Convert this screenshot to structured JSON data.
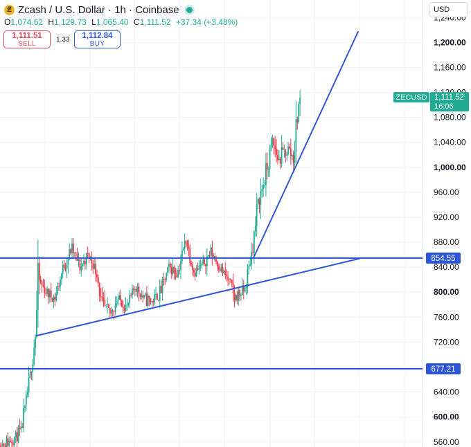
{
  "header": {
    "logo_glyph": "Ƶ",
    "title": "Zcash / U.S. Dollar · 1h · Coinbase",
    "live_color": "#22ab94"
  },
  "ohlc": {
    "o_label": "O",
    "o_value": "1,074.62",
    "h_label": "H",
    "h_value": "1,129.73",
    "l_label": "L",
    "l_value": "1,065.40",
    "c_label": "C",
    "c_value": "1,111.52",
    "change": "+37.34 (+3.48%)"
  },
  "trade": {
    "sell_price": "1,111.51",
    "sell_label": "SELL",
    "spread": "1.33",
    "buy_price": "1,112.84",
    "buy_label": "BUY"
  },
  "currency_select": "USD",
  "colors": {
    "up": "#22ab94",
    "down": "#f23645",
    "trendline": "#2e57d8",
    "price_tag": "#22ab94"
  },
  "chart_data": {
    "type": "candlestick",
    "y_axis_ticks": [
      {
        "value": 1240,
        "label": "1,240.00",
        "bold": false
      },
      {
        "value": 1200,
        "label": "1,200.00",
        "bold": true
      },
      {
        "value": 1160,
        "label": "1,160.00",
        "bold": false
      },
      {
        "value": 1120,
        "label": "1,120.00",
        "bold": false
      },
      {
        "value": 1080,
        "label": "1,080.00",
        "bold": false
      },
      {
        "value": 1040,
        "label": "1,040.00",
        "bold": false
      },
      {
        "value": 1000,
        "label": "1,000.00",
        "bold": true
      },
      {
        "value": 960,
        "label": "960.00",
        "bold": false
      },
      {
        "value": 920,
        "label": "920.00",
        "bold": false
      },
      {
        "value": 880,
        "label": "880.00",
        "bold": false
      },
      {
        "value": 840,
        "label": "840.00",
        "bold": false
      },
      {
        "value": 800,
        "label": "800.00",
        "bold": true
      },
      {
        "value": 760,
        "label": "760.00",
        "bold": false
      },
      {
        "value": 720,
        "label": "720.00",
        "bold": false
      },
      {
        "value": 680,
        "label": "680.00",
        "bold": false
      },
      {
        "value": 640,
        "label": "640.00",
        "bold": false
      },
      {
        "value": 600,
        "label": "600.00",
        "bold": true
      },
      {
        "value": 560,
        "label": "560.00",
        "bold": false
      }
    ],
    "ylim": [
      552,
      1268
    ],
    "grid": true,
    "horizontal_lines": [
      {
        "value": 854.55,
        "label": "854.55"
      },
      {
        "value": 677.21,
        "label": "677.21"
      }
    ],
    "price_tag": {
      "symbol": "ZECUSD",
      "value": "1,111.52",
      "countdown": "16:06",
      "price": 1111.52
    },
    "trendlines": [
      {
        "from": [
          0.085,
          730
        ],
        "to": [
          0.852,
          854
        ]
      },
      {
        "from": [
          0.6,
          855
        ],
        "to": [
          0.848,
          1218
        ]
      }
    ],
    "close_path": [
      [
        0.0,
        555
      ],
      [
        0.02,
        560
      ],
      [
        0.05,
        575
      ],
      [
        0.07,
        660
      ],
      [
        0.085,
        740
      ],
      [
        0.09,
        820
      ],
      [
        0.11,
        800
      ],
      [
        0.13,
        790
      ],
      [
        0.15,
        840
      ],
      [
        0.17,
        870
      ],
      [
        0.19,
        840
      ],
      [
        0.21,
        860
      ],
      [
        0.23,
        830
      ],
      [
        0.24,
        780
      ],
      [
        0.26,
        765
      ],
      [
        0.28,
        790
      ],
      [
        0.3,
        775
      ],
      [
        0.32,
        810
      ],
      [
        0.34,
        790
      ],
      [
        0.36,
        785
      ],
      [
        0.38,
        800
      ],
      [
        0.4,
        840
      ],
      [
        0.42,
        830
      ],
      [
        0.44,
        885
      ],
      [
        0.46,
        830
      ],
      [
        0.48,
        845
      ],
      [
        0.5,
        865
      ],
      [
        0.52,
        840
      ],
      [
        0.54,
        820
      ],
      [
        0.555,
        790
      ],
      [
        0.58,
        805
      ],
      [
        0.6,
        880
      ],
      [
        0.61,
        940
      ],
      [
        0.63,
        990
      ],
      [
        0.645,
        1040
      ],
      [
        0.66,
        1010
      ],
      [
        0.68,
        1030
      ],
      [
        0.695,
        1015
      ],
      [
        0.705,
        1090
      ],
      [
        0.71,
        1111.52
      ]
    ]
  }
}
